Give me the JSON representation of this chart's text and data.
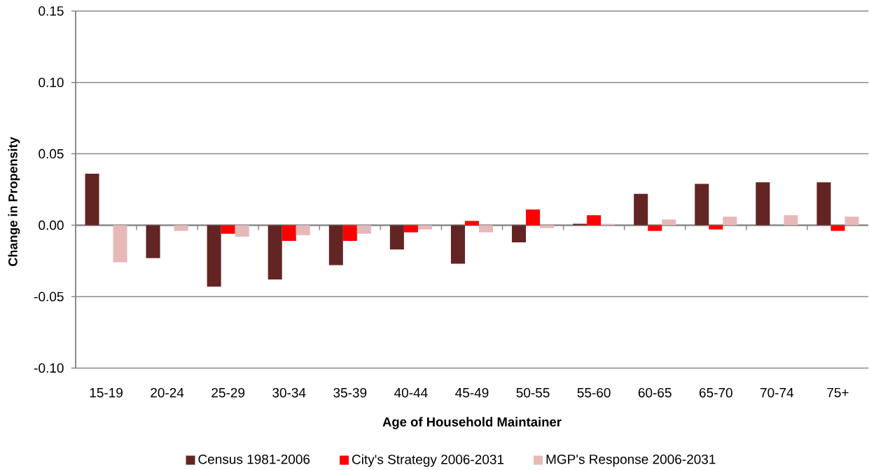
{
  "chart_data": {
    "type": "bar",
    "xlabel": "Age of Household Maintainer",
    "ylabel": "Change in Propensity",
    "categories": [
      "15-19",
      "20-24",
      "25-29",
      "30-34",
      "35-39",
      "40-44",
      "45-49",
      "50-55",
      "55-60",
      "60-65",
      "65-70",
      "70-74",
      "75+"
    ],
    "series": [
      {
        "name": "Census 1981-2006",
        "color": "#632523",
        "values": [
          0.036,
          -0.023,
          -0.043,
          -0.038,
          -0.028,
          -0.017,
          -0.027,
          -0.012,
          0.001,
          0.022,
          0.029,
          0.03,
          0.03
        ]
      },
      {
        "name": "City's Strategy 2006-2031",
        "color": "#ff0000",
        "values": [
          null,
          null,
          -0.006,
          -0.011,
          -0.011,
          -0.005,
          0.003,
          0.011,
          0.007,
          -0.004,
          -0.003,
          null,
          -0.004
        ]
      },
      {
        "name": "MGP's Response 2006-2031",
        "color": "#e6b9b8",
        "values": [
          -0.026,
          -0.004,
          -0.008,
          -0.007,
          -0.006,
          -0.003,
          -0.005,
          -0.002,
          0.001,
          0.004,
          0.006,
          0.007,
          0.006
        ]
      }
    ],
    "ylim": [
      -0.1,
      0.15
    ],
    "yticks": [
      {
        "value": -0.1,
        "label": "-0.10"
      },
      -0.05,
      {
        "value": 0,
        "label": "0.00"
      },
      0.05,
      {
        "value": 0.1,
        "label": "0.10"
      },
      0.15
    ],
    "grid": "y",
    "legend": "bottom"
  }
}
